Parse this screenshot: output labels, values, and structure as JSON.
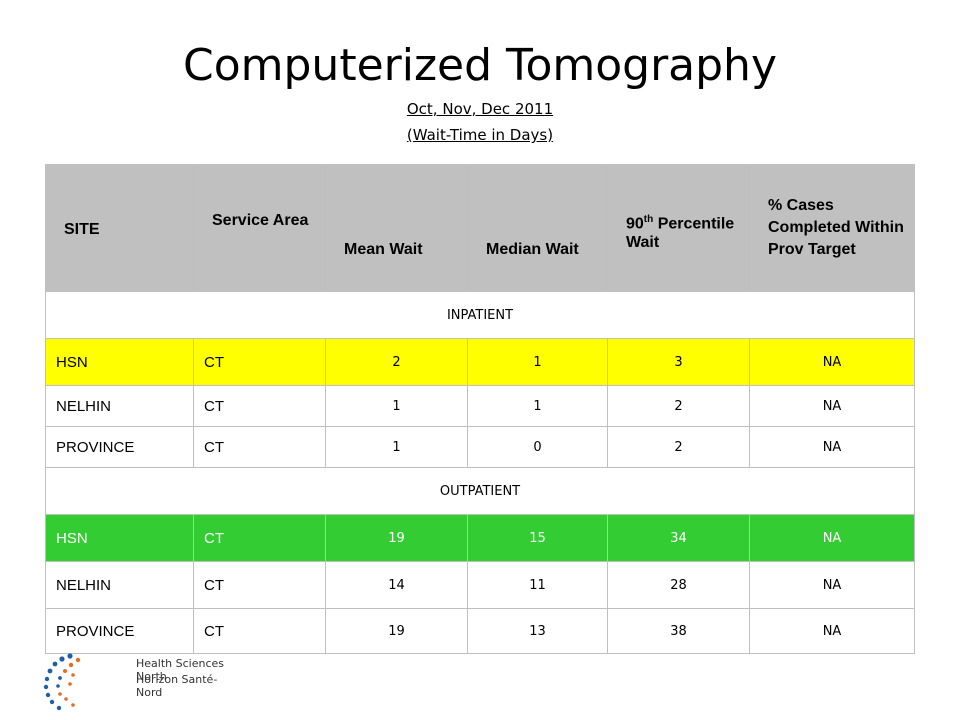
{
  "slide": {
    "title": "Computerized Tomography",
    "subtitle_1": "Oct, Nov, Dec 2011",
    "subtitle_2": "(Wait-Time in Days)"
  },
  "table": {
    "headers": {
      "site": "SITE",
      "service_area": "Service Area",
      "mean_wait": "Mean Wait",
      "median_wait": "Median Wait",
      "p90_num": "90",
      "p90_sup": "th",
      "p90_rest": "Percentile Wait",
      "pct_cases": "% Cases Completed Within Prov Target"
    },
    "inpatient_label": "INPATIENT",
    "outpatient_label": "OUTPATIENT",
    "inpatient": [
      {
        "site": "HSN",
        "service": "CT",
        "mean": "2",
        "median": "1",
        "p90": "3",
        "pct": "NA"
      },
      {
        "site": "NELHIN",
        "service": "CT",
        "mean": "1",
        "median": "1",
        "p90": "2",
        "pct": "NA"
      },
      {
        "site": "PROVINCE",
        "service": "CT",
        "mean": "1",
        "median": "0",
        "p90": "2",
        "pct": "NA"
      }
    ],
    "outpatient": [
      {
        "site": "HSN",
        "service": "CT",
        "mean": "19",
        "median": "15",
        "p90": "34",
        "pct": "NA"
      },
      {
        "site": "NELHIN",
        "service": "CT",
        "mean": "14",
        "median": "11",
        "p90": "28",
        "pct": "NA"
      },
      {
        "site": "PROVINCE",
        "service": "CT",
        "mean": "19",
        "median": "13",
        "p90": "38",
        "pct": "NA"
      }
    ],
    "colors": {
      "header": "#c0c0c0",
      "hsn_inpatient": "#ffff00",
      "hsn_outpatient": "#33cc33"
    }
  },
  "logo": {
    "line_1": "Health Sciences North",
    "line_2": "Horizon Santé-Nord",
    "icon": "hsn-dots-logo"
  }
}
